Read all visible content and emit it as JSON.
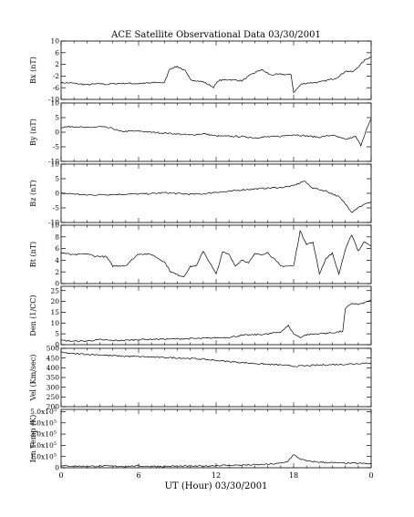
{
  "chart_data": {
    "type": "line",
    "title": "ACE Satellite Observational Data   03/30/2001",
    "xlabel": "UT (Hour)   03/30/2001",
    "x_ticks": [
      "0",
      "6",
      "12",
      "18",
      "0"
    ],
    "xlim_hours": [
      0,
      24
    ],
    "panels": [
      {
        "ylabel": "Bx (nT)",
        "ylim": [
          -10,
          10
        ],
        "yticks": [
          "10",
          "6",
          "2",
          "-2",
          "-6",
          "-10"
        ],
        "x": [
          0,
          0.8,
          2,
          3,
          3.6,
          4,
          5,
          5.9,
          6.5,
          7.5,
          8,
          8.4,
          9,
          9.6,
          10,
          11,
          11.8,
          12.2,
          13,
          14,
          14.8,
          15.5,
          16.2,
          17,
          17.8,
          18,
          18.6,
          19,
          20,
          21.2,
          21.6,
          22,
          22.6,
          23,
          23.6,
          24
        ],
        "y": [
          -4.3,
          -4.4,
          -5.0,
          -4.6,
          -4.9,
          -4.6,
          -4.5,
          -4.6,
          -4.5,
          -4.2,
          -4.3,
          0.5,
          1.3,
          -0.2,
          -3.2,
          -4.0,
          -5.8,
          -3.5,
          -3.2,
          -3.6,
          -1.3,
          0.2,
          -1.6,
          -1.4,
          -1.6,
          -7.6,
          -4.8,
          -4.4,
          -4.1,
          -2.8,
          -1.8,
          -0.3,
          -0.6,
          1.2,
          3.8,
          4.5
        ]
      },
      {
        "ylabel": "By (nT)",
        "ylim": [
          -10,
          10
        ],
        "yticks": [
          "10",
          "5",
          "0",
          "-5",
          "-10"
        ],
        "x": [
          0,
          1,
          2,
          3,
          4,
          4.6,
          5,
          6,
          7,
          8,
          9,
          10,
          11,
          12,
          13,
          14,
          15,
          16,
          17,
          18,
          19,
          20,
          21,
          22,
          22.8,
          23.2,
          23.6,
          24
        ],
        "y": [
          1.7,
          2.0,
          1.5,
          1.9,
          1.3,
          0.2,
          0.3,
          0.4,
          0.0,
          -0.3,
          -0.6,
          -1.0,
          -0.5,
          -1.3,
          -1.4,
          -1.5,
          -1.9,
          -1.6,
          -1.4,
          -0.8,
          -1.3,
          -1.7,
          -1.0,
          -2.5,
          -1.5,
          -4.5,
          0.5,
          4.6
        ]
      },
      {
        "ylabel": "Bz (nT)",
        "ylim": [
          -10,
          10
        ],
        "yticks": [
          "10",
          "5",
          "0",
          "-5",
          "-10"
        ],
        "x": [
          0,
          1,
          2,
          3,
          4,
          5,
          6,
          7,
          8,
          9,
          10,
          11,
          12,
          13,
          14,
          15,
          16,
          17,
          18,
          18.8,
          19.5,
          20.5,
          21.5,
          22,
          22.5,
          23,
          23.5,
          24
        ],
        "y": [
          0.0,
          -0.2,
          -0.6,
          -0.5,
          -0.4,
          -0.3,
          -0.2,
          -0.1,
          0.2,
          -0.1,
          -0.3,
          -0.2,
          0.4,
          0.6,
          1.2,
          1.5,
          1.8,
          2.0,
          2.6,
          4.2,
          1.8,
          0.8,
          -1.2,
          -3.6,
          -6.4,
          -4.8,
          -3.8,
          -2.9
        ]
      },
      {
        "ylabel": "Bt (nT)",
        "ylim": [
          0,
          10
        ],
        "yticks": [
          "10",
          "8",
          "6",
          "4",
          "2",
          "0"
        ],
        "x": [
          0,
          1,
          2,
          2.6,
          3.5,
          4,
          5,
          6,
          7,
          8,
          8.5,
          9,
          9.5,
          10,
          10.5,
          11,
          11.5,
          12,
          12.5,
          13,
          13.5,
          14,
          14.5,
          15,
          15.5,
          16,
          17,
          18,
          18.5,
          19,
          19.5,
          20,
          20.5,
          21,
          21.5,
          22,
          22.5,
          23,
          23.5,
          24
        ],
        "y": [
          5.3,
          4.9,
          5.1,
          4.7,
          4.6,
          3.0,
          3.1,
          5.1,
          5.0,
          3.7,
          2.0,
          1.5,
          1.2,
          2.9,
          3.1,
          5.6,
          3.6,
          1.6,
          5.4,
          5.0,
          3.0,
          4.1,
          3.5,
          5.1,
          5.0,
          5.3,
          3.0,
          3.0,
          9.0,
          6.8,
          7.0,
          1.7,
          4.3,
          5.2,
          1.6,
          5.8,
          8.4,
          5.6,
          7.2,
          6.5
        ]
      },
      {
        "ylabel": "Den (1/CC)",
        "ylim": [
          0,
          27
        ],
        "yticks": [
          "25",
          "20",
          "15",
          "10",
          "5",
          "0"
        ],
        "x": [
          0,
          1,
          2,
          3,
          4,
          5,
          6,
          7,
          8,
          9,
          10,
          11,
          12,
          13,
          14,
          15,
          16,
          17,
          17.6,
          18,
          18.5,
          19,
          20,
          21,
          21.8,
          22,
          22.5,
          23,
          23.5,
          24
        ],
        "y": [
          2.0,
          1.6,
          1.7,
          2.3,
          1.9,
          2.0,
          2.4,
          2.5,
          2.6,
          2.7,
          2.8,
          2.9,
          3.2,
          3.4,
          4.3,
          4.6,
          4.9,
          6.0,
          8.8,
          5.0,
          3.4,
          4.6,
          5.1,
          5.5,
          6.2,
          16.5,
          19.2,
          18.6,
          19.4,
          20.8
        ]
      },
      {
        "ylabel": "Vel (Km/sec)",
        "ylim": [
          200,
          500
        ],
        "yticks": [
          "500",
          "450",
          "400",
          "350",
          "300",
          "250",
          "200"
        ],
        "x": [
          0,
          1,
          2,
          3,
          4,
          5,
          6,
          7,
          8,
          9,
          10,
          11,
          12,
          13,
          14,
          15,
          16,
          17,
          18,
          19,
          20,
          21,
          22,
          23,
          24
        ],
        "y": [
          478,
          472,
          470,
          466,
          462,
          459,
          457,
          455,
          453,
          451,
          448,
          444,
          438,
          432,
          427,
          422,
          418,
          414,
          408,
          410,
          414,
          416,
          418,
          422,
          426
        ]
      },
      {
        "ylabel": "Ion Temp (K)",
        "ylim": [
          0,
          520000
        ],
        "yticks": [
          "5.0x10",
          "4.0x10",
          "3.0x10",
          "2.0x10",
          "1.0x10",
          "0"
        ],
        "ytick_exponent": "5",
        "x": [
          0,
          1,
          2,
          3,
          4,
          5,
          6,
          7,
          8,
          9,
          10,
          11,
          12,
          13,
          14,
          15,
          16,
          17,
          17.5,
          18,
          18.5,
          19,
          20,
          21,
          22,
          23,
          24
        ],
        "y": [
          15000,
          14000,
          13000,
          15000,
          14000,
          13000,
          15000,
          13000,
          12000,
          14000,
          13000,
          14000,
          20000,
          22000,
          24000,
          26000,
          30000,
          40000,
          55000,
          115000,
          80000,
          60000,
          50000,
          45000,
          40000,
          40000,
          35000
        ]
      }
    ]
  }
}
